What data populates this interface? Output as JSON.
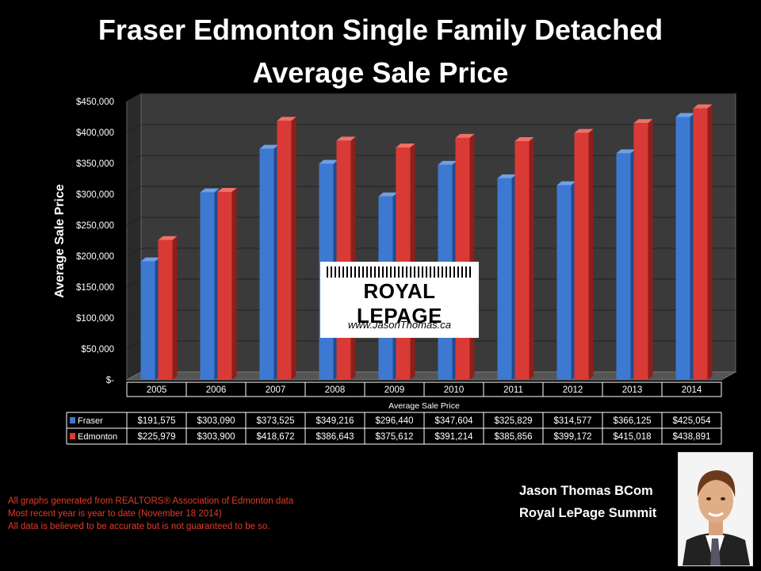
{
  "title_line1": "Fraser Edmonton Single Family Detached",
  "title_line2": "Average Sale Price",
  "chart_data": {
    "type": "bar",
    "categories": [
      "2005",
      "2006",
      "2007",
      "2008",
      "2009",
      "2010",
      "2011",
      "2012",
      "2013",
      "2014"
    ],
    "series": [
      {
        "name": "Fraser",
        "color": "#3d79d1",
        "values": [
          191575,
          303090,
          373525,
          349216,
          296440,
          347604,
          325829,
          314577,
          366125,
          425054
        ],
        "labels": [
          "$191,575",
          "$303,090",
          "$373,525",
          "$349,216",
          "$296,440",
          "$347,604",
          "$325,829",
          "$314,577",
          "$366,125",
          "$425,054"
        ]
      },
      {
        "name": "Edmonton",
        "color": "#d93a35",
        "values": [
          225979,
          303900,
          418672,
          386643,
          375612,
          391214,
          385856,
          399172,
          415018,
          438891
        ],
        "labels": [
          "$225,979",
          "$303,900",
          "$418,672",
          "$386,643",
          "$375,612",
          "$391,214",
          "$385,856",
          "$399,172",
          "$415,018",
          "$438,891"
        ]
      }
    ],
    "ylim": [
      0,
      450000
    ],
    "yticks": [
      "$-",
      "$50,000",
      "$100,000",
      "$150,000",
      "$200,000",
      "$250,000",
      "$300,000",
      "$350,000",
      "$400,000",
      "$450,000"
    ],
    "ylabel": "Average Sale Price",
    "xlabel": "Average Sale Price",
    "grid": true,
    "legend": "data-table"
  },
  "logo": {
    "name": "ROYAL LEPAGE",
    "url": "www.JasonThomas.ca"
  },
  "footnotes": [
    "All graphs generated from REALTORS® Association of Edmonton data",
    "Most recent year is year to date (November 18 2014)",
    "All data is believed to be accurate but is not guaranteed to be so."
  ],
  "signature": {
    "name": "Jason Thomas BCom",
    "company": "Royal LePage Summit"
  },
  "colors": {
    "footnote": "#e23b2a",
    "plot_bg": "#3a3a3a"
  }
}
